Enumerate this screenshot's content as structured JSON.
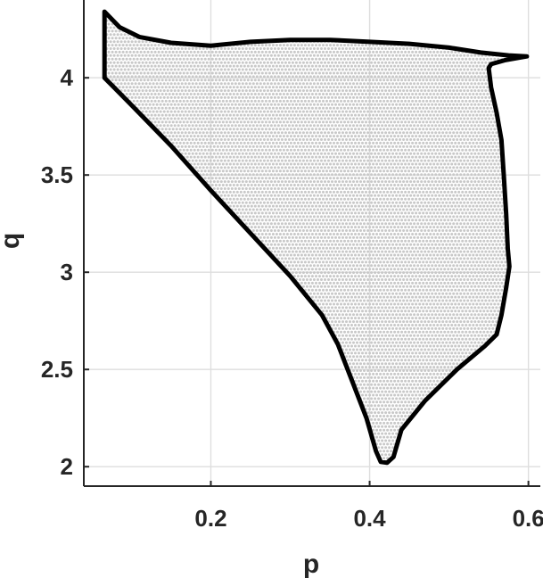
{
  "chart_data": {
    "type": "scatter",
    "title": "",
    "xlabel": "p",
    "ylabel": "q",
    "xlim": [
      0.04,
      0.615
    ],
    "ylim": [
      1.9,
      4.4
    ],
    "xticks": [
      0.2,
      0.4,
      0.6
    ],
    "xtick_labels": [
      "0.2",
      "0.4",
      "0.6"
    ],
    "yticks": [
      2,
      2.5,
      3,
      3.5,
      4
    ],
    "ytick_labels": [
      "2",
      "2.5",
      "3",
      "3.5",
      "4"
    ],
    "grid": true,
    "series": [
      {
        "kind": "region-points",
        "color": "#c8c8c8",
        "description_points": "dense grid of sample points filling the boundary region"
      },
      {
        "kind": "boundary-line",
        "color": "#000000",
        "points": [
          [
            0.066,
            4.34
          ],
          [
            0.085,
            4.26
          ],
          [
            0.11,
            4.21
          ],
          [
            0.15,
            4.18
          ],
          [
            0.2,
            4.165
          ],
          [
            0.25,
            4.185
          ],
          [
            0.3,
            4.195
          ],
          [
            0.35,
            4.195
          ],
          [
            0.4,
            4.185
          ],
          [
            0.45,
            4.175
          ],
          [
            0.5,
            4.155
          ],
          [
            0.54,
            4.13
          ],
          [
            0.575,
            4.115
          ],
          [
            0.598,
            4.11
          ],
          [
            0.57,
            4.09
          ],
          [
            0.553,
            4.07
          ],
          [
            0.55,
            4.05
          ],
          [
            0.553,
            3.95
          ],
          [
            0.56,
            3.82
          ],
          [
            0.566,
            3.68
          ],
          [
            0.569,
            3.5
          ],
          [
            0.572,
            3.3
          ],
          [
            0.574,
            3.12
          ],
          [
            0.576,
            3.03
          ],
          [
            0.572,
            2.92
          ],
          [
            0.566,
            2.78
          ],
          [
            0.56,
            2.68
          ],
          [
            0.545,
            2.62
          ],
          [
            0.51,
            2.5
          ],
          [
            0.47,
            2.34
          ],
          [
            0.44,
            2.19
          ],
          [
            0.43,
            2.05
          ],
          [
            0.422,
            2.02
          ],
          [
            0.414,
            2.025
          ],
          [
            0.408,
            2.08
          ],
          [
            0.396,
            2.25
          ],
          [
            0.378,
            2.44
          ],
          [
            0.36,
            2.63
          ],
          [
            0.34,
            2.78
          ],
          [
            0.3,
            2.98
          ],
          [
            0.25,
            3.2
          ],
          [
            0.2,
            3.42
          ],
          [
            0.15,
            3.65
          ],
          [
            0.1,
            3.86
          ],
          [
            0.066,
            4.0
          ],
          [
            0.066,
            4.34
          ]
        ]
      }
    ]
  }
}
